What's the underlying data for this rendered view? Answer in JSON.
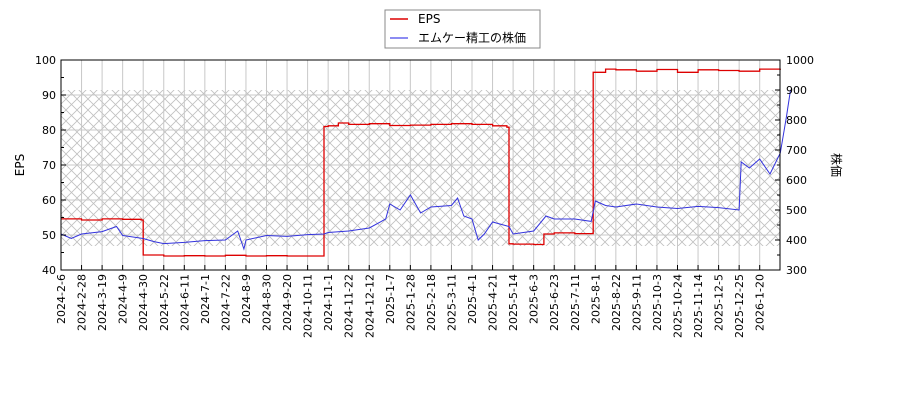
{
  "chart_data": {
    "type": "line",
    "title": "",
    "legend": {
      "position": "top-center",
      "entries": [
        {
          "label": "EPS",
          "color": "#dd0000"
        },
        {
          "label": "エムケー精工の株価",
          "color": "#3333dd"
        }
      ]
    },
    "left_axis": {
      "label": "EPS",
      "ticks": [
        40,
        50,
        60,
        70,
        80,
        90,
        100
      ],
      "ylim": [
        40,
        100
      ]
    },
    "right_axis": {
      "label": "株価",
      "ticks": [
        300,
        400,
        500,
        600,
        700,
        800,
        900,
        1000
      ],
      "ylim": [
        300,
        1000
      ]
    },
    "grid": true,
    "hatched_band": {
      "axis": "right",
      "from": 380,
      "to": 900
    },
    "x_tick_labels": [
      "2024-2-6",
      "2024-2-28",
      "2024-3-19",
      "2024-4-9",
      "2024-4-30",
      "2024-5-22",
      "2024-6-11",
      "2024-7-1",
      "2024-7-22",
      "2024-8-9",
      "2024-8-30",
      "2024-9-20",
      "2024-10-11",
      "2024-11-1",
      "2024-11-22",
      "2024-12-12",
      "2025-1-7",
      "2025-1-28",
      "2025-2-18",
      "2025-3-11",
      "2025-4-1",
      "2025-4-21",
      "2025-5-14",
      "2025-6-3",
      "2025-6-23",
      "2025-7-11",
      "2025-8-1",
      "2025-8-22",
      "2025-9-11",
      "2025-10-3",
      "2025-10-24",
      "2025-11-14",
      "2025-12-5",
      "2025-12-25",
      "2026-1-20"
    ],
    "series": [
      {
        "name": "EPS",
        "axis": "left",
        "color": "#dd0000",
        "points": [
          [
            0,
            54.6
          ],
          [
            1,
            54.3
          ],
          [
            2,
            54.6
          ],
          [
            3,
            54.5
          ],
          [
            3.9,
            54.3
          ],
          [
            4,
            44.3
          ],
          [
            5,
            44.0
          ],
          [
            6,
            44.1
          ],
          [
            7,
            44.0
          ],
          [
            8,
            44.2
          ],
          [
            9,
            44.0
          ],
          [
            10,
            44.1
          ],
          [
            11,
            44.0
          ],
          [
            12,
            44.0
          ],
          [
            12.7,
            44.0
          ],
          [
            12.8,
            81.0
          ],
          [
            13,
            81.2
          ],
          [
            13.5,
            82.0
          ],
          [
            14,
            81.6
          ],
          [
            15,
            81.8
          ],
          [
            16,
            81.3
          ],
          [
            17,
            81.4
          ],
          [
            18,
            81.6
          ],
          [
            19,
            81.8
          ],
          [
            20,
            81.6
          ],
          [
            21,
            81.2
          ],
          [
            21.7,
            80.8
          ],
          [
            21.8,
            47.5
          ],
          [
            22,
            47.4
          ],
          [
            23,
            47.3
          ],
          [
            23.5,
            50.3
          ],
          [
            24,
            50.6
          ],
          [
            25,
            50.4
          ],
          [
            25.8,
            50.4
          ],
          [
            25.9,
            96.5
          ],
          [
            26.5,
            97.4
          ],
          [
            27,
            97.2
          ],
          [
            28,
            96.8
          ],
          [
            29,
            97.3
          ],
          [
            30,
            96.5
          ],
          [
            31,
            97.2
          ],
          [
            32,
            97.0
          ],
          [
            33,
            96.8
          ],
          [
            34,
            97.4
          ],
          [
            35,
            97.5
          ]
        ]
      },
      {
        "name": "エムケー精工の株価",
        "axis": "right",
        "color": "#3333dd",
        "points": [
          [
            0,
            420
          ],
          [
            0.5,
            405
          ],
          [
            1,
            420
          ],
          [
            2,
            428
          ],
          [
            2.7,
            445
          ],
          [
            3,
            415
          ],
          [
            4,
            405
          ],
          [
            4.5,
            395
          ],
          [
            5,
            388
          ],
          [
            6,
            392
          ],
          [
            7,
            398
          ],
          [
            8,
            400
          ],
          [
            8.6,
            430
          ],
          [
            8.9,
            370
          ],
          [
            9,
            400
          ],
          [
            10,
            415
          ],
          [
            11,
            412
          ],
          [
            12,
            418
          ],
          [
            12.8,
            420
          ],
          [
            13,
            425
          ],
          [
            14,
            430
          ],
          [
            15,
            440
          ],
          [
            15.8,
            470
          ],
          [
            16,
            520
          ],
          [
            16.5,
            500
          ],
          [
            17,
            550
          ],
          [
            17.5,
            490
          ],
          [
            18,
            510
          ],
          [
            19,
            515
          ],
          [
            19.3,
            540
          ],
          [
            19.6,
            480
          ],
          [
            20,
            470
          ],
          [
            20.3,
            400
          ],
          [
            20.6,
            420
          ],
          [
            21,
            460
          ],
          [
            21.8,
            445
          ],
          [
            22,
            420
          ],
          [
            23,
            430
          ],
          [
            23.6,
            480
          ],
          [
            24,
            470
          ],
          [
            25,
            470
          ],
          [
            25.8,
            462
          ],
          [
            26,
            530
          ],
          [
            26.5,
            515
          ],
          [
            27,
            510
          ],
          [
            28,
            520
          ],
          [
            29,
            510
          ],
          [
            30,
            505
          ],
          [
            31,
            512
          ],
          [
            32,
            508
          ],
          [
            33,
            500
          ],
          [
            33.1,
            660
          ],
          [
            33.5,
            640
          ],
          [
            34,
            670
          ],
          [
            34.5,
            620
          ],
          [
            35,
            690
          ],
          [
            35.3,
            810
          ],
          [
            35.5,
            900
          ]
        ]
      }
    ]
  }
}
